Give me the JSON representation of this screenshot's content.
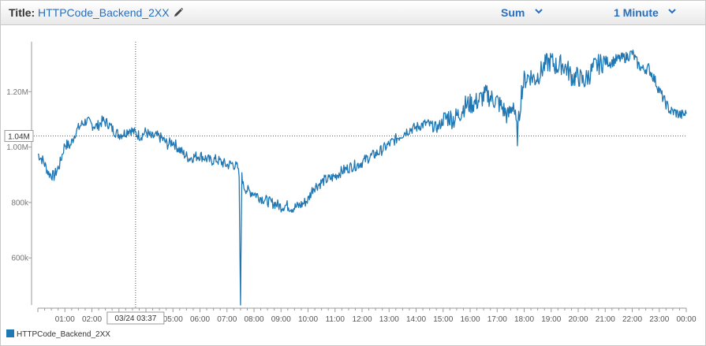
{
  "header": {
    "title_label": "Title:",
    "title_value": "HTTPCode_Backend_2XX",
    "statistic": "Sum",
    "period": "1 Minute"
  },
  "crosshair": {
    "value_label": "1.04M",
    "time_label": "03/24 03:37"
  },
  "chart_data": {
    "type": "line",
    "series": [
      {
        "name": "HTTPCode_Backend_2XX",
        "color": "#1f77b4",
        "x_hours": [
          0.0,
          0.2,
          0.4,
          0.6,
          0.8,
          1.0,
          1.2,
          1.4,
          1.6,
          1.8,
          2.0,
          2.2,
          2.4,
          2.6,
          2.8,
          3.0,
          3.2,
          3.4,
          3.6,
          3.8,
          4.0,
          4.2,
          4.4,
          4.6,
          4.8,
          5.0,
          5.2,
          5.4,
          5.6,
          5.8,
          6.0,
          6.2,
          6.4,
          6.6,
          6.8,
          7.0,
          7.2,
          7.4,
          7.45,
          7.5,
          7.55,
          7.6,
          7.8,
          8.0,
          8.2,
          8.4,
          8.6,
          8.8,
          9.0,
          9.2,
          9.4,
          9.6,
          9.8,
          10.0,
          10.2,
          10.4,
          10.6,
          10.8,
          11.0,
          11.2,
          11.4,
          11.6,
          11.8,
          12.0,
          12.2,
          12.4,
          12.6,
          12.8,
          13.0,
          13.2,
          13.4,
          13.6,
          13.8,
          14.0,
          14.2,
          14.4,
          14.6,
          14.8,
          15.0,
          15.2,
          15.4,
          15.6,
          15.8,
          16.0,
          16.2,
          16.4,
          16.6,
          16.8,
          17.0,
          17.2,
          17.4,
          17.6,
          17.75,
          17.9,
          18.0,
          18.2,
          18.4,
          18.6,
          18.8,
          19.0,
          19.2,
          19.4,
          19.6,
          19.8,
          20.0,
          20.2,
          20.4,
          20.6,
          20.8,
          21.0,
          21.2,
          21.4,
          21.6,
          21.8,
          22.0,
          22.2,
          22.4,
          22.6,
          22.8,
          23.0,
          23.2,
          23.4,
          23.6,
          23.8,
          24.0
        ],
        "values": [
          975000,
          950000,
          905000,
          895000,
          935000,
          1010000,
          1005000,
          1055000,
          1080000,
          1095000,
          1080000,
          1075000,
          1095000,
          1085000,
          1060000,
          1045000,
          1050000,
          1065000,
          1050000,
          1040000,
          1055000,
          1035000,
          1040000,
          1030000,
          1010000,
          1020000,
          995000,
          975000,
          960000,
          965000,
          970000,
          960000,
          950000,
          955000,
          945000,
          935000,
          940000,
          925000,
          890000,
          430000,
          910000,
          860000,
          840000,
          835000,
          820000,
          810000,
          800000,
          795000,
          785000,
          790000,
          780000,
          785000,
          795000,
          810000,
          855000,
          865000,
          880000,
          885000,
          895000,
          910000,
          920000,
          930000,
          935000,
          945000,
          960000,
          970000,
          980000,
          995000,
          1010000,
          1025000,
          1040000,
          1055000,
          1065000,
          1070000,
          1080000,
          1085000,
          1075000,
          1070000,
          1095000,
          1110000,
          1100000,
          1120000,
          1150000,
          1155000,
          1160000,
          1175000,
          1190000,
          1175000,
          1165000,
          1140000,
          1110000,
          1160000,
          1040000,
          1200000,
          1240000,
          1260000,
          1245000,
          1270000,
          1300000,
          1310000,
          1290000,
          1300000,
          1280000,
          1250000,
          1255000,
          1235000,
          1260000,
          1290000,
          1300000,
          1310000,
          1305000,
          1315000,
          1320000,
          1325000,
          1340000,
          1300000,
          1280000,
          1285000,
          1250000,
          1205000,
          1165000,
          1130000,
          1125000,
          1115000,
          1120000
        ]
      }
    ],
    "x_tick_labels": [
      "01:00",
      "02:00",
      "03:00",
      "04:00",
      "05:00",
      "06:00",
      "07:00",
      "08:00",
      "09:00",
      "10:00",
      "11:00",
      "12:00",
      "13:00",
      "14:00",
      "15:00",
      "16:00",
      "17:00",
      "18:00",
      "19:00",
      "20:00",
      "21:00",
      "22:00",
      "23:00",
      "00:00"
    ],
    "y_tick_values": [
      600000,
      800000,
      1000000,
      1200000
    ],
    "y_tick_labels": [
      "600k",
      "800k",
      "1.00M",
      "1.20M"
    ],
    "ylim": [
      430000,
      1380000
    ],
    "xlim_hours": [
      0,
      24
    ],
    "crosshair_hour": 3.617,
    "crosshair_value": 1040000,
    "grid": false,
    "legend_position": "bottom-left"
  }
}
